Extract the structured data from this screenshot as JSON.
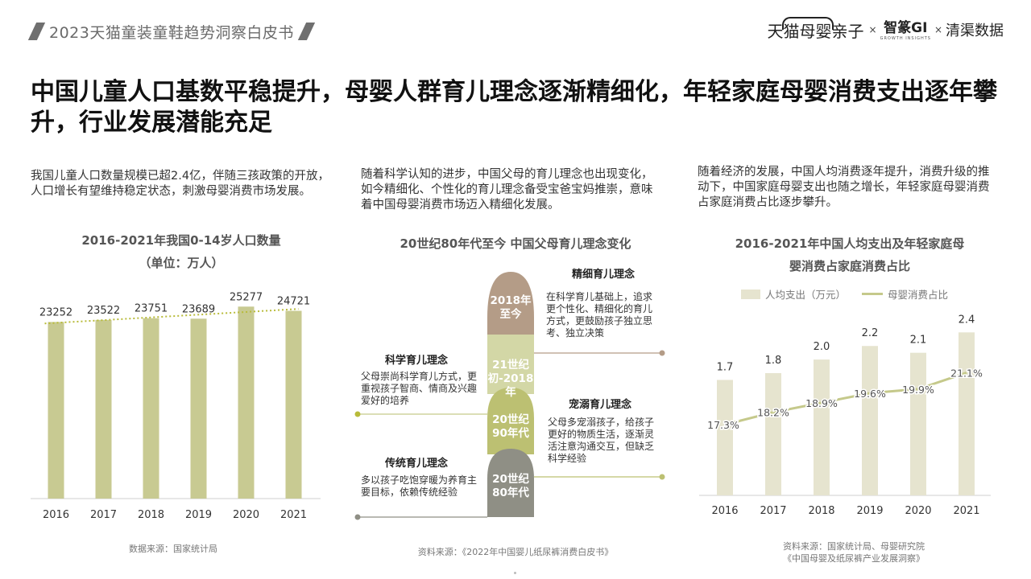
{
  "header": {
    "report_title": "2023天猫童装童鞋趋势洞察白皮书",
    "brand_tmall": "天猫母婴亲子",
    "brand_sep1": "×",
    "brand_gi": "智篆GI",
    "brand_gi_sub": "GROWTH INSIGHTS",
    "brand_sep2": "×",
    "brand_qingqu": "清渠数据"
  },
  "headline": "中国儿童人口基数平稳提升，母婴人群育儿理念逐渐精细化，年轻家庭母婴消费支出逐年攀升，行业发展潜能充足",
  "intros": {
    "left": "我国儿童人口数量规模已超2.4亿，伴随三孩政策的开放，人口增长有望维持稳定状态，刺激母婴消费市场发展。",
    "middle": "随着科学认知的进步，中国父母的育儿理念也出现变化，如今精细化、个性化的育儿理念备受宝爸宝妈推崇，意味着中国母婴消费市场迈入精细化发展。",
    "right": "随着经济的发展，中国人均消费逐年提升，消费升级的推动下，中国家庭母婴支出也随之增长，年轻家庭母婴消费占家庭消费占比逐步攀升。"
  },
  "chart_data": [
    {
      "type": "bar",
      "title": "2016-2021年我国0-14岁人口数量",
      "subtitle": "（单位：万人）",
      "categories": [
        "2016",
        "2017",
        "2018",
        "2019",
        "2020",
        "2021"
      ],
      "values": [
        23252,
        23522,
        23751,
        23689,
        25277,
        24721
      ],
      "trendline": "dotted linear",
      "ylim": [
        0,
        27000
      ],
      "grid": false,
      "colors": {
        "bar": "#c8ca92",
        "trend": "#b8bb3a"
      }
    },
    {
      "type": "bar+line",
      "title": "2016-2021年中国人均支出及年轻家庭母婴消费占家庭消费占比",
      "categories": [
        "2016",
        "2017",
        "2018",
        "2019",
        "2020",
        "2021"
      ],
      "series": [
        {
          "name": "人均支出（万元）",
          "type": "bar",
          "values": [
            1.7,
            1.8,
            2.0,
            2.2,
            2.1,
            2.4
          ],
          "labels": [
            "1.7",
            "1.8",
            "2.0",
            "2.2",
            "2.1",
            "2.4"
          ]
        },
        {
          "name": "母婴消费占比",
          "type": "line",
          "values": [
            17.3,
            18.2,
            18.9,
            19.6,
            19.9,
            21.1
          ],
          "labels": [
            "17.3%",
            "18.2%",
            "18.9%",
            "19.6%",
            "19.9%",
            "21.1%"
          ]
        }
      ],
      "legend": "top",
      "grid": false,
      "colors": {
        "bar": "#e6e4cf",
        "line": "#c5c98b"
      }
    }
  ],
  "charts": {
    "left": {
      "title": "2016-2021年我国0-14岁人口数量",
      "subtitle": "（单位：万人）",
      "source": "数据来源：国家统计局"
    },
    "right": {
      "title_line1": "2016-2021年中国人均支出及年轻家庭母",
      "title_line2": "婴消费占家庭消费占比",
      "legend_bar": "人均支出（万元）",
      "legend_line": "母婴消费占比",
      "source_line1": "资料来源：国家统计局、母婴研究院",
      "source_line2": "《中国母婴及纸尿裤产业发展洞察》"
    }
  },
  "diagram": {
    "title": "20世纪80年代至今 中国父母育儿理念变化",
    "source": "资料来源：《2022年中国婴儿纸尿裤消费白皮书》",
    "eras": [
      {
        "label": "2018年至今",
        "color": "#b49c87"
      },
      {
        "label": "21世纪初-2018年",
        "color": "#d3d7a6"
      },
      {
        "label": "20世纪90年代",
        "color": "#bcc072"
      },
      {
        "label": "20世纪80年代",
        "color": "#8f8f85"
      }
    ],
    "stages": {
      "fine": {
        "title": "精细育儿理念",
        "desc": "在科学育儿基础上，追求更个性化、精细化的育儿方式，更鼓励孩子独立思考、独立决策"
      },
      "science": {
        "title": "科学育儿理念",
        "desc": "父母崇尚科学育儿方式，更重视孩子智商、情商及兴趣爱好的培养"
      },
      "spoil": {
        "title": "宠溺育儿理念",
        "desc": "父母多宠溺孩子，给孩子更好的物质生活，逐渐灵活注意沟通交互，但缺乏科学经验"
      },
      "traditional": {
        "title": "传统育儿理念",
        "desc": "多以孩子吃饱穿暖为养育主要目标，依赖传统经验"
      }
    }
  }
}
